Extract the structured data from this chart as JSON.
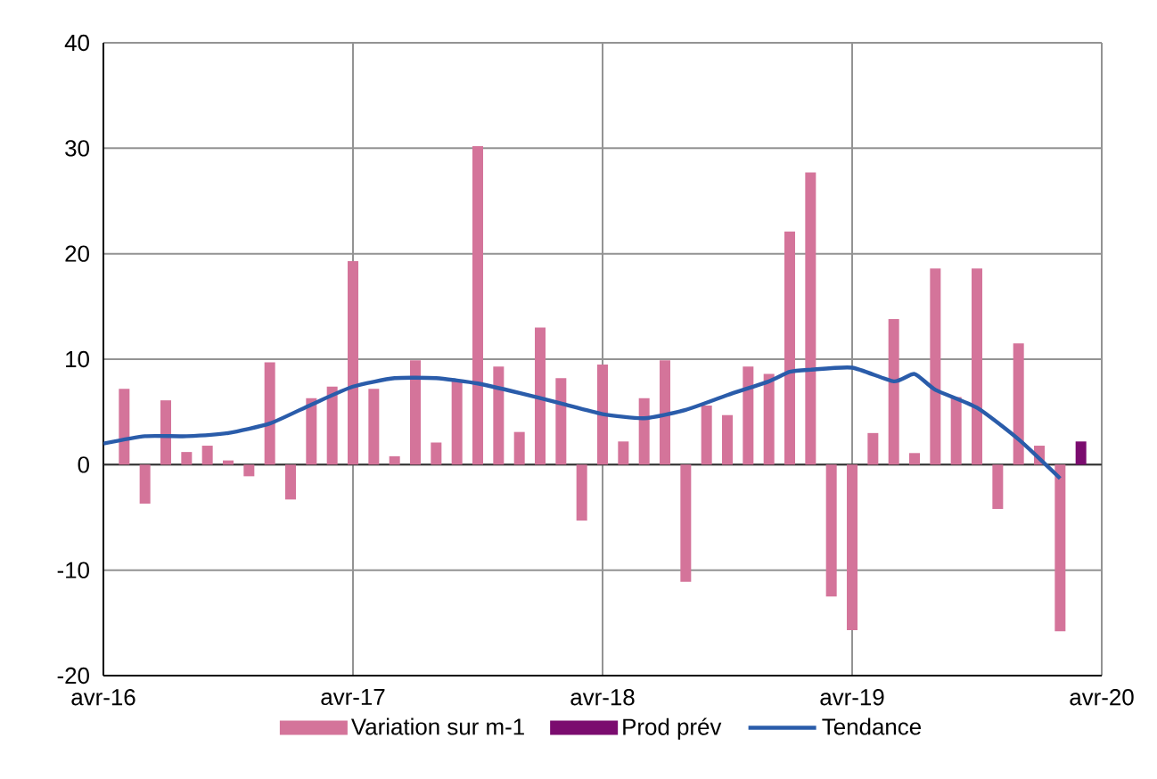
{
  "chart_data": {
    "type": "bar",
    "xlim": [
      "2016-04",
      "2020-04"
    ],
    "xticks": [
      {
        "value": "2016-04",
        "label": "avr-16"
      },
      {
        "value": "2017-04",
        "label": "avr-17"
      },
      {
        "value": "2018-04",
        "label": "avr-18"
      },
      {
        "value": "2019-04",
        "label": "avr-19"
      },
      {
        "value": "2020-04",
        "label": "avr-20"
      }
    ],
    "ylim": [
      -20,
      40
    ],
    "yticks": [
      -20,
      -10,
      0,
      10,
      20,
      30,
      40
    ],
    "grid": true,
    "legend": "bottom",
    "series": [
      {
        "name": "Variation sur m-1",
        "color": "#d4749a",
        "x": [
          "2016-05",
          "2016-06",
          "2016-07",
          "2016-08",
          "2016-09",
          "2016-10",
          "2016-11",
          "2016-12",
          "2017-01",
          "2017-02",
          "2017-03",
          "2017-04",
          "2017-05",
          "2017-06",
          "2017-07",
          "2017-08",
          "2017-09",
          "2017-10",
          "2017-11",
          "2017-12",
          "2018-01",
          "2018-02",
          "2018-03",
          "2018-04",
          "2018-05",
          "2018-06",
          "2018-07",
          "2018-08",
          "2018-09",
          "2018-10",
          "2018-11",
          "2018-12",
          "2019-01",
          "2019-02",
          "2019-03",
          "2019-04",
          "2019-05",
          "2019-06",
          "2019-07",
          "2019-08",
          "2019-09",
          "2019-10",
          "2019-11",
          "2019-12",
          "2020-01",
          "2020-02"
        ],
        "values": [
          7.2,
          -3.7,
          6.1,
          1.2,
          1.8,
          0.4,
          -1.1,
          9.7,
          -3.3,
          6.3,
          7.4,
          19.3,
          7.2,
          0.8,
          9.9,
          2.1,
          7.9,
          30.2,
          9.3,
          3.1,
          13,
          8.2,
          -5.3,
          9.5,
          2.2,
          6.3,
          9.9,
          -11.1,
          5.6,
          4.7,
          9.3,
          8.6,
          22.1,
          27.7,
          -12.5,
          -15.7,
          3.0,
          13.8,
          1.1,
          18.6,
          6.4,
          18.6,
          -4.2,
          11.5,
          1.8,
          -15.8
        ]
      },
      {
        "name": "Prod prév",
        "type": "bar",
        "color": "#7b0c6f",
        "x": [
          "2020-03"
        ],
        "values": [
          2.2
        ]
      },
      {
        "name": "Tendance",
        "type": "line",
        "color": "#2a5caa",
        "x": [
          "2016-04",
          "2016-06",
          "2016-08",
          "2016-10",
          "2016-12",
          "2017-02",
          "2017-04",
          "2017-06",
          "2017-08",
          "2017-10",
          "2017-12",
          "2018-02",
          "2018-04",
          "2018-06",
          "2018-08",
          "2018-10",
          "2018-12",
          "2019-01",
          "2019-02",
          "2019-04",
          "2019-06",
          "2019-07",
          "2019-08",
          "2019-10",
          "2019-12",
          "2020-02"
        ],
        "values": [
          2.0,
          2.7,
          2.7,
          3.0,
          3.9,
          5.7,
          7.4,
          8.2,
          8.2,
          7.7,
          6.8,
          5.8,
          4.8,
          4.4,
          5.2,
          6.6,
          7.9,
          8.8,
          9.0,
          9.2,
          7.9,
          8.6,
          7.1,
          5.4,
          2.4,
          -1.3
        ]
      }
    ]
  }
}
